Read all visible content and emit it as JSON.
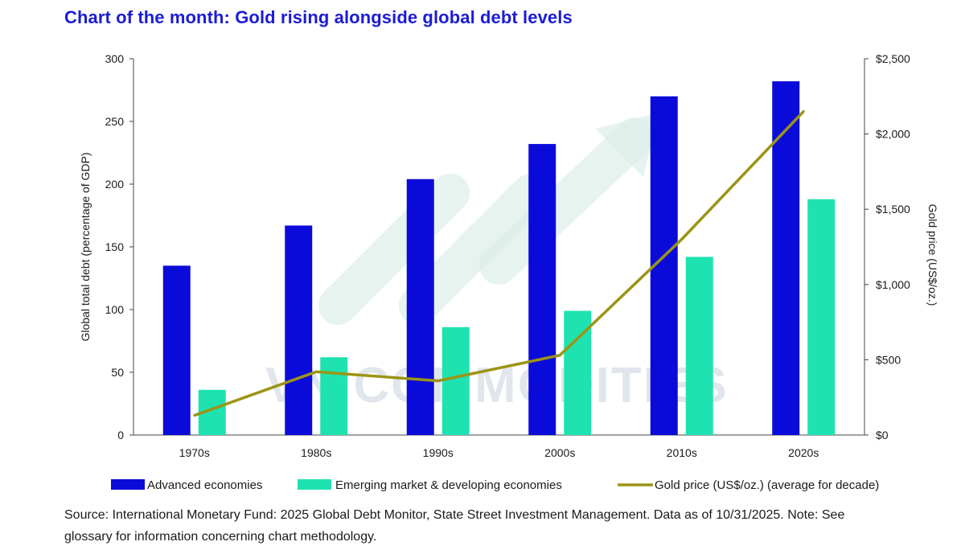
{
  "title": "Chart of the month: Gold rising alongside global debt levels",
  "source": "Source: International Monetary Fund: 2025 Global Debt Monitor, State Street Investment Management. Data as of 10/31/2025. Note: See glossary for information concerning chart methodology.",
  "watermark": "VN COMMODITIES",
  "colors": {
    "advanced": "#0b0bd9",
    "emerging": "#1ee3b0",
    "gold": "#9c9416",
    "axis": "#444444"
  },
  "chart_data": {
    "type": "bar",
    "categories": [
      "1970s",
      "1980s",
      "1990s",
      "2000s",
      "2010s",
      "2020s"
    ],
    "series": [
      {
        "name": "Advanced economies",
        "kind": "bar",
        "axis": "left",
        "values": [
          135,
          167,
          204,
          232,
          270,
          282
        ]
      },
      {
        "name": "Emerging market & developing economies",
        "kind": "bar",
        "axis": "left",
        "values": [
          36,
          62,
          86,
          99,
          142,
          188
        ]
      },
      {
        "name": "Gold price (US$/oz.)  (average for decade)",
        "kind": "line",
        "axis": "right",
        "values": [
          130,
          420,
          360,
          530,
          1300,
          2150
        ]
      }
    ],
    "ylabel": "Global total debt (percentage of GDP)",
    "ylim": [
      0,
      300
    ],
    "yticks": [
      "0",
      "50",
      "100",
      "150",
      "200",
      "250",
      "300"
    ],
    "y2label": "Gold price (US$/oz.)",
    "y2lim": [
      0,
      2500
    ],
    "y2ticks": [
      "$0",
      "$500",
      "$1,000",
      "$1,500",
      "$2,000",
      "$2,500"
    ],
    "legend_position": "bottom"
  }
}
